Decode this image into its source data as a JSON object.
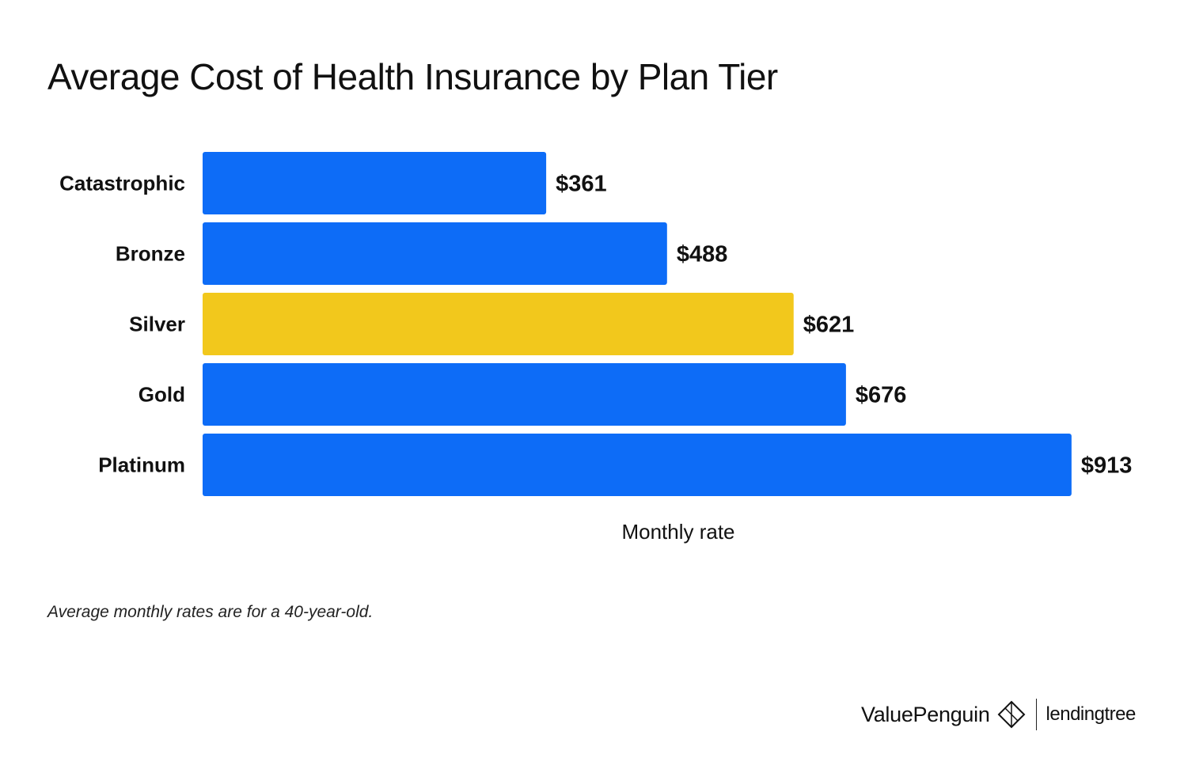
{
  "title": "Average Cost of Health Insurance by Plan Tier",
  "note": "Average monthly rates are for a 40-year-old.",
  "branding": {
    "primary": "ValuePenguin",
    "primary_icon": "penguin-diamond-icon",
    "secondary": "lendingtree"
  },
  "colors": {
    "blue": "#0d6cf7",
    "highlight": "#f2c81c"
  },
  "chart_data": {
    "type": "bar",
    "orientation": "horizontal",
    "title": "Average Cost of Health Insurance by Plan Tier",
    "xlabel": "Monthly rate",
    "ylabel": "",
    "categories": [
      "Catastrophic",
      "Bronze",
      "Silver",
      "Gold",
      "Platinum"
    ],
    "values": [
      361,
      488,
      621,
      676,
      913
    ],
    "value_labels": [
      "$361",
      "$488",
      "$621",
      "$676",
      "$913"
    ],
    "highlight_category": "Silver",
    "grid": false,
    "legend": "none"
  }
}
